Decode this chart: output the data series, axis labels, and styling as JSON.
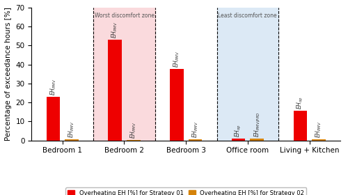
{
  "groups": [
    "Bedroom 1",
    "Bedroom 2",
    "Bedroom 3",
    "Office room",
    "Living + Kitchen"
  ],
  "red_values": [
    23.0,
    53.0,
    37.5,
    0.8,
    15.5
  ],
  "orange_values": [
    0.5,
    0.3,
    0.5,
    0.9,
    0.5
  ],
  "red_color": "#ee0000",
  "orange_color": "#d4820a",
  "ylim": [
    0,
    70
  ],
  "yticks": [
    0,
    10,
    20,
    30,
    40,
    50,
    60,
    70
  ],
  "ylabel": "Percentage of exceedance hours [%]",
  "worst_bg": "#fadadd",
  "least_bg": "#dce9f5",
  "worst_label": "Worst discomfort zone",
  "least_label": "Least discomfort zone",
  "bar_width": 0.22,
  "legend1": "Overheating EH [%] for Strategy 01",
  "legend2": "Overheating EH [%] for Strategy 02",
  "annot_fontsize": 5.5,
  "axis_fontsize": 7.5,
  "tick_fontsize": 7.5
}
